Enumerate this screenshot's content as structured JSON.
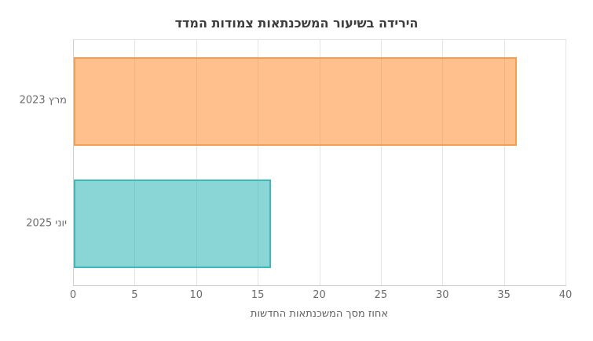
{
  "chart_data": {
    "type": "bar",
    "orientation": "horizontal",
    "title": "הירידה בשיעור המשכנתאות צמודות המדד",
    "categories": [
      "מרץ 2023",
      "יוני 2025"
    ],
    "values": [
      36,
      16
    ],
    "xlabel": "אחוז מסך המשכנתאות החדשות",
    "ylabel": "",
    "xlim": [
      0,
      40
    ],
    "xticks": [
      0,
      5,
      10,
      15,
      20,
      25,
      30,
      35,
      40
    ],
    "grid": true,
    "legend_position": "none",
    "bar_band_fraction": 0.36,
    "series_colors": [
      {
        "name": "מרץ 2023",
        "fill": "rgba(255,141,49,0.55)",
        "border": "rgba(244,158,84,1)"
      },
      {
        "name": "יוני 2025",
        "fill": "rgba(42,181,181,0.55)",
        "border": "rgba(62,184,184,1)"
      }
    ],
    "colors": {
      "title": "#3d3d3d",
      "tick_label": "#6b6b6b",
      "axis_label": "#5f5f5f",
      "gridline": "#e4e4e4",
      "axis_line_left": "#cfcfcf",
      "axis_line_bottom": "#c9c9c9",
      "axis_line_top": "#e3e3e3",
      "background": "#ffffff"
    }
  }
}
